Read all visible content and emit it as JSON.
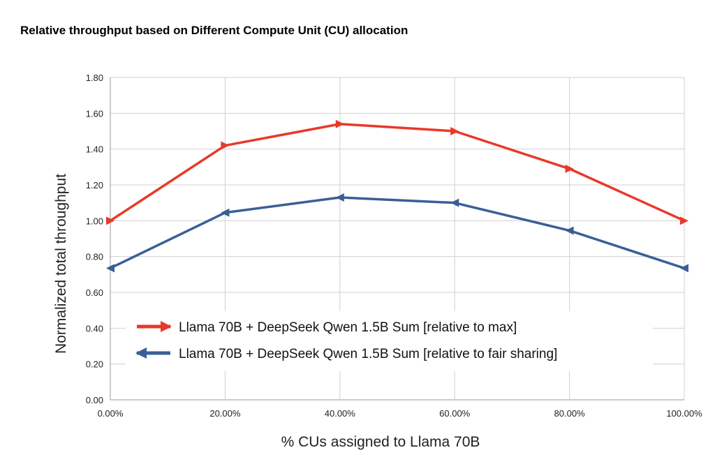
{
  "chart_data": {
    "type": "line",
    "title": "Relative throughput based on Different Compute Unit (CU) allocation",
    "xlabel": "% CUs assigned to Llama 70B",
    "ylabel": "Normalized total throughput",
    "categories": [
      "0.00%",
      "20.00%",
      "40.00%",
      "60.00%",
      "80.00%",
      "100.00%"
    ],
    "y_ticks": [
      "0.00",
      "0.20",
      "0.40",
      "0.60",
      "0.80",
      "1.00",
      "1.20",
      "1.40",
      "1.60",
      "1.80"
    ],
    "ylim": [
      0,
      1.8
    ],
    "grid": true,
    "legend_position": "bottom-left-inside",
    "series": [
      {
        "name": "Llama 70B + DeepSeek Qwen 1.5B Sum [relative to max]",
        "color": "#e8392a",
        "marker": "triangle-right",
        "values": [
          1.0,
          1.42,
          1.54,
          1.5,
          1.29,
          1.0
        ]
      },
      {
        "name": "Llama 70B + DeepSeek Qwen 1.5B Sum [relative to fair sharing]",
        "color": "#3a5f96",
        "marker": "triangle-left",
        "values": [
          0.735,
          1.045,
          1.13,
          1.1,
          0.945,
          0.735
        ]
      }
    ]
  }
}
